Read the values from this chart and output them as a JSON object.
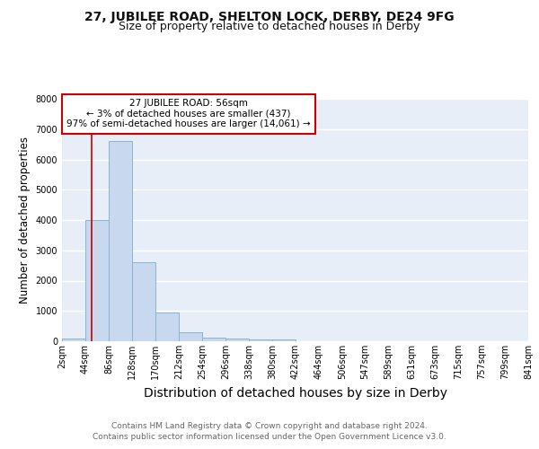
{
  "title1": "27, JUBILEE ROAD, SHELTON LOCK, DERBY, DE24 9FG",
  "title2": "Size of property relative to detached houses in Derby",
  "xlabel": "Distribution of detached houses by size in Derby",
  "ylabel": "Number of detached properties",
  "footer1": "Contains HM Land Registry data © Crown copyright and database right 2024.",
  "footer2": "Contains public sector information licensed under the Open Government Licence v3.0.",
  "bin_edges": [
    2,
    44,
    86,
    128,
    170,
    212,
    254,
    296,
    338,
    380,
    422,
    464,
    506,
    547,
    589,
    631,
    673,
    715,
    757,
    799,
    841
  ],
  "bar_heights": [
    100,
    4000,
    6600,
    2600,
    950,
    300,
    130,
    100,
    70,
    50,
    0,
    0,
    0,
    0,
    0,
    0,
    0,
    0,
    0,
    0
  ],
  "bar_color": "#c8d8ee",
  "bar_edgecolor": "#8ab4d4",
  "property_line_x": 56,
  "property_line_color": "#cc0000",
  "annotation_title": "27 JUBILEE ROAD: 56sqm",
  "annotation_line2": "← 3% of detached houses are smaller (437)",
  "annotation_line3": "97% of semi-detached houses are larger (14,061) →",
  "annotation_box_color": "#cc0000",
  "annotation_bg": "#ffffff",
  "ylim": [
    0,
    8000
  ],
  "yticks": [
    0,
    1000,
    2000,
    3000,
    4000,
    5000,
    6000,
    7000,
    8000
  ],
  "background_color": "#ffffff",
  "plot_background": "#e8eef8",
  "grid_color": "#ffffff",
  "title1_fontsize": 10,
  "title2_fontsize": 9,
  "xlabel_fontsize": 10,
  "ylabel_fontsize": 8.5,
  "tick_fontsize": 7,
  "footer_fontsize": 6.5,
  "footer_color": "#666666"
}
